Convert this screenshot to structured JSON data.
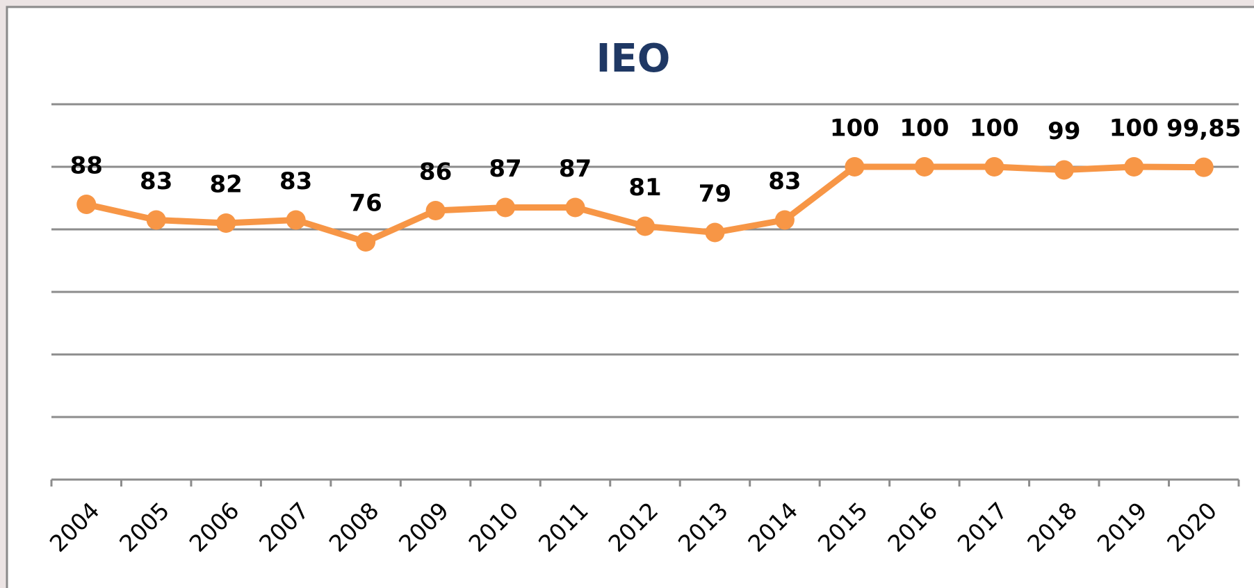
{
  "chart_data": {
    "type": "line",
    "title": "IEO",
    "categories": [
      "2004",
      "2005",
      "2006",
      "2007",
      "2008",
      "2009",
      "2010",
      "2011",
      "2012",
      "2013",
      "2014",
      "2015",
      "2016",
      "2017",
      "2018",
      "2019",
      "2020"
    ],
    "series": [
      {
        "name": "IEO",
        "color": "#f79646",
        "values": [
          88,
          83,
          82,
          83,
          76,
          86,
          87,
          87,
          81,
          79,
          83,
          100,
          100,
          100,
          99,
          100,
          99.85
        ],
        "value_labels": [
          "88",
          "83",
          "82",
          "83",
          "76",
          "86",
          "87",
          "87",
          "81",
          "79",
          "83",
          "100",
          "100",
          "100",
          "99",
          "100",
          "99,85"
        ]
      }
    ],
    "ylim": [
      0,
      120
    ],
    "yticks": [
      0,
      20,
      40,
      60,
      80,
      100,
      120
    ],
    "grid": true
  }
}
